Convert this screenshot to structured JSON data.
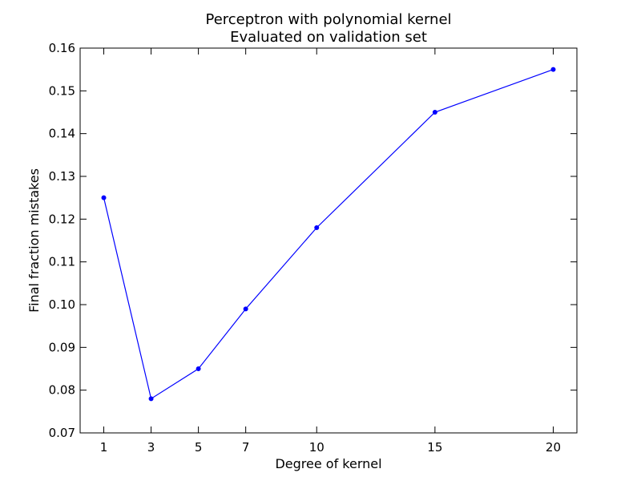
{
  "chart_data": {
    "type": "line",
    "title": "Perceptron with polynomial kernel",
    "subtitle": "Evaluated on validation set",
    "xlabel": "Degree of kernel",
    "ylabel": "Final fraction mistakes",
    "x": [
      1,
      3,
      5,
      7,
      10,
      15,
      20
    ],
    "y": [
      0.125,
      0.078,
      0.085,
      0.099,
      0.118,
      0.145,
      0.155
    ],
    "xlim": [
      0,
      21
    ],
    "ylim": [
      0.07,
      0.16
    ],
    "xticks": [
      1,
      3,
      5,
      7,
      10,
      15,
      20
    ],
    "xtick_labels": [
      "1",
      "3",
      "5",
      "7",
      "10",
      "15",
      "20"
    ],
    "yticks": [
      0.07,
      0.08,
      0.09,
      0.1,
      0.11,
      0.12,
      0.13,
      0.14,
      0.15,
      0.16
    ],
    "ytick_labels": [
      "0.07",
      "0.08",
      "0.09",
      "0.10",
      "0.11",
      "0.12",
      "0.13",
      "0.14",
      "0.15",
      "0.16"
    ],
    "grid": false,
    "line_color": "#0000ff",
    "marker": "dot"
  }
}
